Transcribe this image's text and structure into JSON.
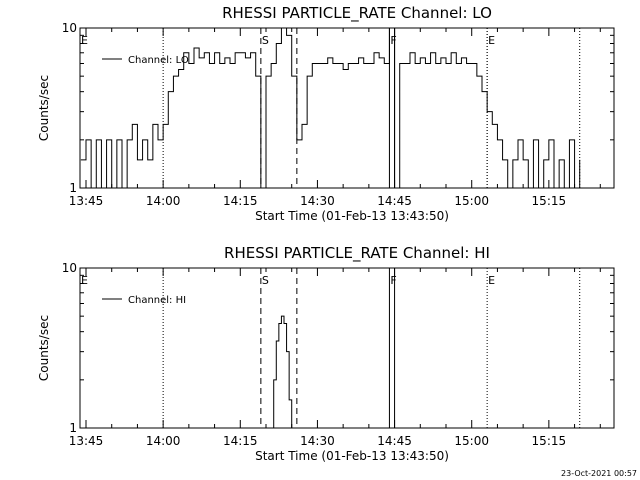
{
  "chart_data": [
    {
      "type": "line",
      "title": "RHESSI PARTICLE_RATE Channel: LO",
      "xlabel": "Start Time (01-Feb-13 13:43:50)",
      "ylabel": "Counts/sec",
      "y_scale": "log",
      "ylim": [
        1,
        10
      ],
      "y_ticks": [
        {
          "value": 1,
          "label": "1"
        },
        {
          "value": 10,
          "label": "10"
        }
      ],
      "x_range": [
        "13:43:50",
        "15:27:40"
      ],
      "x_ticks": [
        "13:45",
        "14:00",
        "14:15",
        "14:30",
        "14:45",
        "15:00",
        "15:15"
      ],
      "legend": {
        "position": "top-left",
        "entries": [
          "Channel: LO"
        ]
      },
      "markers": [
        {
          "label": "E",
          "time": "13:43:50",
          "style": "dotted"
        },
        {
          "label": "",
          "time": "14:00",
          "style": "dotted"
        },
        {
          "label": "S",
          "time": "14:19",
          "style": "dashed"
        },
        {
          "label": "",
          "time": "14:26",
          "style": "dashed"
        },
        {
          "label": "F",
          "time": "14:44",
          "style": "solid"
        },
        {
          "label": "",
          "time": "14:45",
          "style": "solid"
        },
        {
          "label": "",
          "time": "15:03",
          "style": "dotted"
        },
        {
          "label": "E",
          "time": "15:03",
          "style": "dotted"
        },
        {
          "label": "",
          "time": "15:21",
          "style": "dotted"
        }
      ],
      "series": [
        {
          "name": "Channel: LO",
          "x": [
            "13:44",
            "13:45",
            "13:46",
            "13:47",
            "13:48",
            "13:49",
            "13:50",
            "13:51",
            "13:52",
            "13:53",
            "13:54",
            "13:55",
            "13:56",
            "13:57",
            "13:58",
            "13:59",
            "14:00",
            "14:01",
            "14:02",
            "14:03",
            "14:04",
            "14:05",
            "14:06",
            "14:07",
            "14:08",
            "14:09",
            "14:10",
            "14:11",
            "14:12",
            "14:13",
            "14:14",
            "14:15",
            "14:16",
            "14:17",
            "14:18",
            "14:19",
            "14:20",
            "14:21",
            "14:22",
            "14:23",
            "14:24",
            "14:25",
            "14:26",
            "14:27",
            "14:28",
            "14:29",
            "14:30",
            "14:31",
            "14:32",
            "14:33",
            "14:34",
            "14:35",
            "14:36",
            "14:37",
            "14:38",
            "14:39",
            "14:40",
            "14:41",
            "14:42",
            "14:43",
            "14:44",
            "14:45",
            "14:46",
            "14:47",
            "14:48",
            "14:49",
            "14:50",
            "14:51",
            "14:52",
            "14:53",
            "14:54",
            "14:55",
            "14:56",
            "14:57",
            "14:58",
            "14:59",
            "15:00",
            "15:01",
            "15:02",
            "15:03",
            "15:04",
            "15:05",
            "15:06",
            "15:07",
            "15:08",
            "15:09",
            "15:10",
            "15:11",
            "15:12",
            "15:13",
            "15:14",
            "15:15",
            "15:16",
            "15:17",
            "15:18",
            "15:19",
            "15:20",
            "15:21"
          ],
          "y": [
            1.5,
            2.0,
            1.0,
            2.0,
            1.0,
            2.0,
            1.0,
            2.0,
            1.0,
            2.0,
            2.5,
            1.5,
            2.0,
            1.5,
            2.5,
            2.0,
            2.5,
            4.0,
            5.0,
            5.5,
            7.0,
            6.0,
            7.5,
            6.5,
            7.0,
            6.0,
            7.0,
            6.0,
            6.5,
            6.0,
            7.0,
            7.0,
            6.5,
            7.0,
            5.0,
            1.0,
            5.0,
            6.0,
            8.0,
            10.0,
            9.0,
            5.0,
            2.0,
            2.5,
            5.0,
            6.0,
            6.0,
            6.0,
            6.5,
            6.0,
            6.0,
            5.5,
            6.0,
            6.0,
            6.5,
            6.0,
            6.0,
            7.0,
            6.5,
            6.0,
            10.0,
            1.0,
            6.0,
            6.0,
            7.0,
            6.0,
            6.5,
            6.0,
            7.0,
            6.0,
            6.5,
            6.0,
            7.0,
            6.0,
            6.5,
            6.0,
            6.0,
            5.0,
            4.0,
            3.0,
            2.5,
            2.0,
            1.5,
            1.0,
            1.5,
            2.0,
            1.5,
            1.0,
            2.0,
            1.0,
            1.5,
            2.0,
            1.0,
            1.5,
            1.0,
            2.0,
            1.0,
            1.5
          ]
        }
      ]
    },
    {
      "type": "line",
      "title": "RHESSI PARTICLE_RATE Channel: HI",
      "xlabel": "Start Time (01-Feb-13 13:43:50)",
      "ylabel": "Counts/sec",
      "y_scale": "log",
      "ylim": [
        1,
        10
      ],
      "y_ticks": [
        {
          "value": 1,
          "label": "1"
        },
        {
          "value": 10,
          "label": "10"
        }
      ],
      "x_range": [
        "13:43:50",
        "15:27:40"
      ],
      "x_ticks": [
        "13:45",
        "14:00",
        "14:15",
        "14:30",
        "14:45",
        "15:00",
        "15:15"
      ],
      "legend": {
        "position": "top-left",
        "entries": [
          "Channel: HI"
        ]
      },
      "markers": [
        {
          "label": "E",
          "time": "13:43:50",
          "style": "dotted"
        },
        {
          "label": "",
          "time": "14:00",
          "style": "dotted"
        },
        {
          "label": "S",
          "time": "14:19",
          "style": "dashed"
        },
        {
          "label": "",
          "time": "14:26",
          "style": "dashed"
        },
        {
          "label": "F",
          "time": "14:44",
          "style": "solid"
        },
        {
          "label": "",
          "time": "14:45",
          "style": "solid"
        },
        {
          "label": "E",
          "time": "15:03",
          "style": "dotted"
        },
        {
          "label": "",
          "time": "15:21",
          "style": "dotted"
        }
      ],
      "series": [
        {
          "name": "Channel: HI",
          "x": [
            "14:21",
            "14:21:30",
            "14:22",
            "14:22:30",
            "14:23",
            "14:23:30",
            "14:24",
            "14:24:30",
            "14:25"
          ],
          "y": [
            1.0,
            2.0,
            3.5,
            4.5,
            5.0,
            4.5,
            3.0,
            1.5,
            1.0
          ]
        }
      ]
    }
  ],
  "footer": {
    "timestamp": "23-Oct-2021 00:57"
  }
}
